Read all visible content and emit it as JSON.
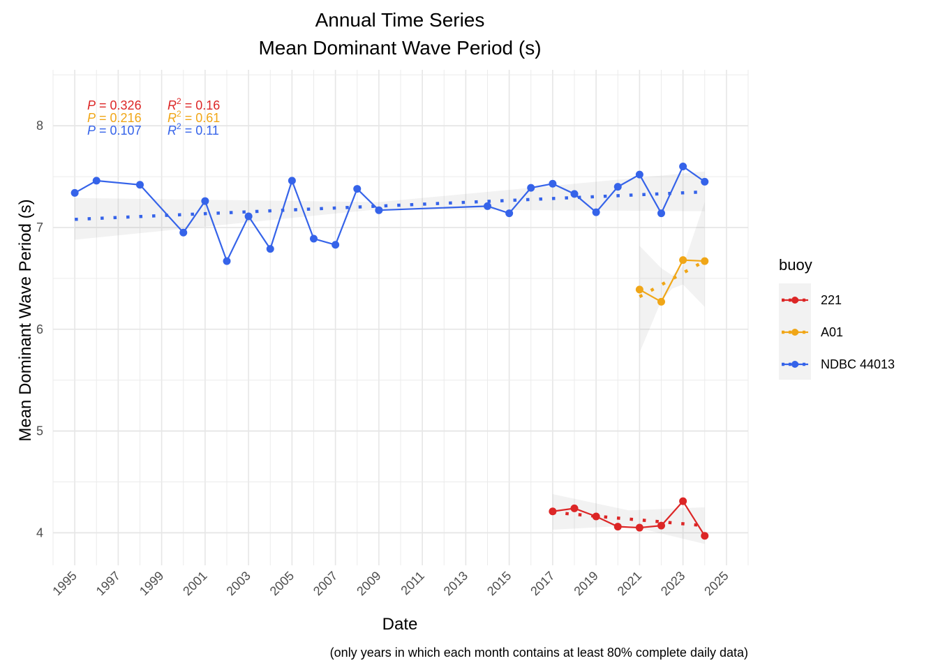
{
  "title_line1": "Annual Time Series",
  "title_line2": "Mean Dominant Wave Period (s)",
  "caption": "(only years in which each month contains at least 80% complete daily data)",
  "chart_data": {
    "type": "line",
    "xlabel": "Date",
    "ylabel": "Mean Dominant Wave Period (s)",
    "xlim": [
      1994,
      2026
    ],
    "ylim": [
      3.68,
      8.55
    ],
    "x_ticks": [
      "1995",
      "1997",
      "1999",
      "2001",
      "2003",
      "2005",
      "2007",
      "2009",
      "2011",
      "2013",
      "2015",
      "2017",
      "2019",
      "2021",
      "2023",
      "2025"
    ],
    "y_ticks": [
      "4",
      "5",
      "6",
      "7",
      "8"
    ],
    "grid": true,
    "legend": {
      "title": "buoy",
      "position": "right"
    },
    "series": [
      {
        "name": "221",
        "color": "#dc2626",
        "points": [
          [
            2017,
            4.21
          ],
          [
            2018,
            4.24
          ],
          [
            2019,
            4.16
          ],
          [
            2020,
            4.06
          ],
          [
            2021,
            4.05
          ],
          [
            2022,
            4.07
          ],
          [
            2023,
            4.31
          ],
          [
            2024,
            3.97
          ]
        ],
        "trend": [
          [
            2017,
            4.2
          ],
          [
            2024,
            4.07
          ]
        ],
        "ci_upper": [
          [
            2017,
            4.38
          ],
          [
            2020.5,
            4.22
          ],
          [
            2024,
            4.25
          ]
        ],
        "ci_lower": [
          [
            2017,
            4.03
          ],
          [
            2020.5,
            4.07
          ],
          [
            2024,
            3.89
          ]
        ],
        "p": "0.326",
        "r2": "0.16"
      },
      {
        "name": "A01",
        "color": "#f0a617",
        "points": [
          [
            2021,
            6.39
          ],
          [
            2022,
            6.27
          ],
          [
            2023,
            6.68
          ],
          [
            2024,
            6.67
          ]
        ],
        "trend": [
          [
            2021,
            6.32
          ],
          [
            2024,
            6.67
          ]
        ],
        "ci_upper": [
          [
            2021,
            6.82
          ],
          [
            2022,
            6.6
          ],
          [
            2022.5,
            6.53
          ],
          [
            2023,
            6.62
          ],
          [
            2024,
            7.25
          ]
        ],
        "ci_lower": [
          [
            2021,
            5.77
          ],
          [
            2022,
            6.28
          ],
          [
            2022.5,
            6.4
          ],
          [
            2023,
            6.44
          ],
          [
            2024,
            6.22
          ]
        ],
        "p": "0.216",
        "r2": "0.61"
      },
      {
        "name": "NDBC 44013",
        "color": "#3563e9",
        "points": [
          [
            1995,
            7.34
          ],
          [
            1996,
            7.46
          ],
          [
            1998,
            7.42
          ],
          [
            2000,
            6.95
          ],
          [
            2001,
            7.26
          ],
          [
            2002,
            6.67
          ],
          [
            2003,
            7.11
          ],
          [
            2004,
            6.79
          ],
          [
            2005,
            7.46
          ],
          [
            2006,
            6.89
          ],
          [
            2007,
            6.83
          ],
          [
            2008,
            7.38
          ],
          [
            2009,
            7.17
          ],
          [
            2014,
            7.21
          ],
          [
            2015,
            7.14
          ],
          [
            2016,
            7.39
          ],
          [
            2017,
            7.43
          ],
          [
            2018,
            7.33
          ],
          [
            2019,
            7.15
          ],
          [
            2020,
            7.4
          ],
          [
            2021,
            7.52
          ],
          [
            2022,
            7.14
          ],
          [
            2023,
            7.6
          ],
          [
            2024,
            7.45
          ]
        ],
        "trend": [
          [
            1995,
            7.08
          ],
          [
            2024,
            7.35
          ]
        ],
        "ci_upper": [
          [
            1995,
            7.29
          ],
          [
            2009,
            7.25
          ],
          [
            2024,
            7.55
          ]
        ],
        "ci_lower": [
          [
            1995,
            6.88
          ],
          [
            2009,
            7.18
          ],
          [
            2024,
            7.16
          ]
        ],
        "p": "0.107",
        "r2": "0.11"
      }
    ]
  }
}
